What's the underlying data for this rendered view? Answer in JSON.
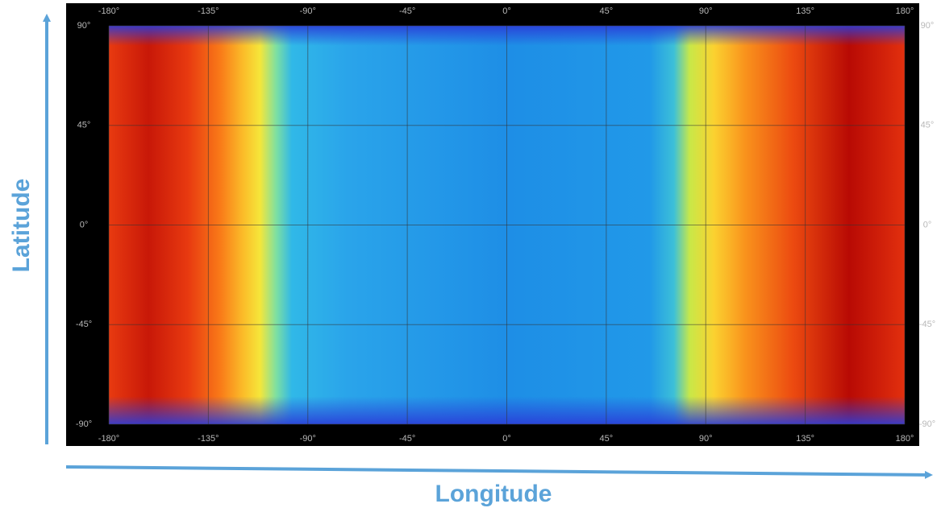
{
  "map": {
    "y_axis_label": "Latitude",
    "x_axis_label": "Longitude",
    "top_ticks": [
      "-180°",
      "-135°",
      "-90°",
      "-45°",
      "0°",
      "45°",
      "90°",
      "135°",
      "180°"
    ],
    "bottom_ticks": [
      "-180°",
      "-135°",
      "-90°",
      "-45°",
      "0°",
      "45°",
      "90°",
      "135°",
      "180°"
    ],
    "left_ticks": [
      "90°",
      "45°",
      "0°",
      "-45°",
      "-90°"
    ],
    "right_ticks": [
      "90°",
      "45°",
      "0°",
      "-45°",
      "-90°"
    ]
  }
}
